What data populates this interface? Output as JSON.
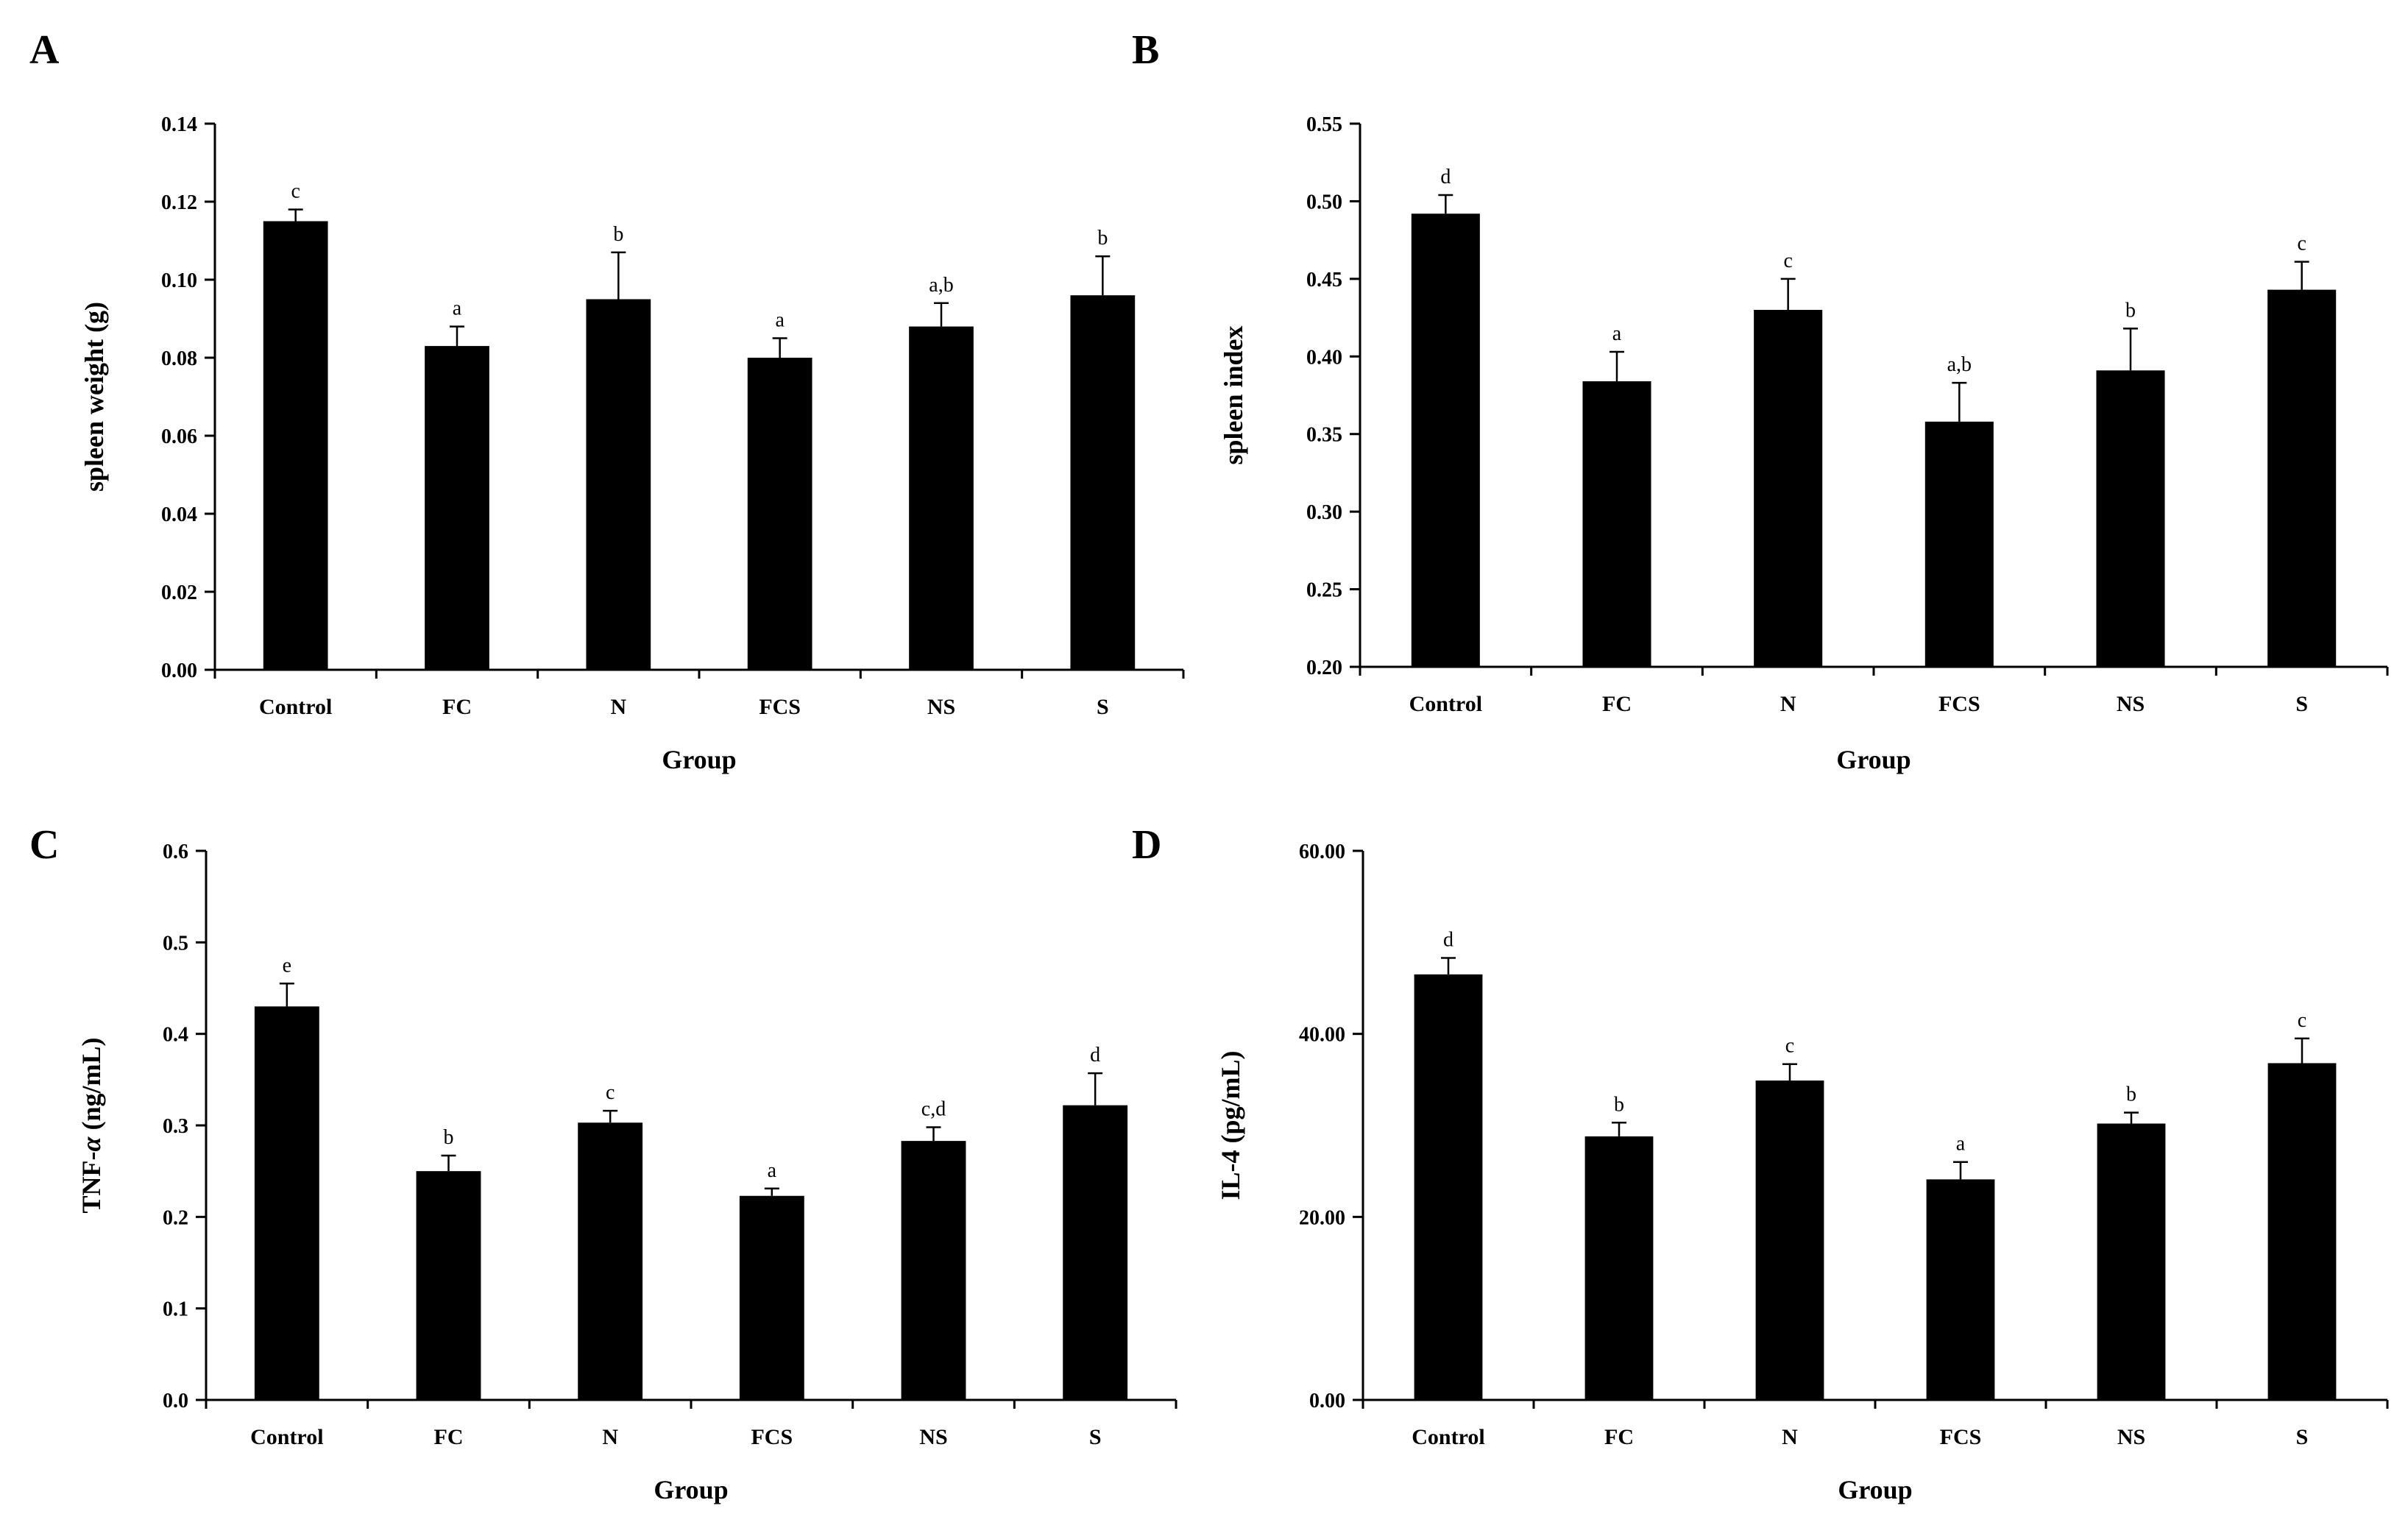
{
  "chart_data": [
    {
      "panel": "A",
      "type": "bar",
      "xlabel": "Group",
      "ylabel": "spleen weight (g)",
      "categories": [
        "Control",
        "FC",
        "N",
        "FCS",
        "NS",
        "S"
      ],
      "values": [
        0.115,
        0.083,
        0.095,
        0.08,
        0.088,
        0.096
      ],
      "errors": [
        0.003,
        0.005,
        0.012,
        0.005,
        0.006,
        0.01
      ],
      "labels": [
        "c",
        "a",
        "b",
        "a",
        "a,b",
        "b"
      ],
      "ylim": [
        0,
        0.14
      ],
      "yticks": [
        0.0,
        0.02,
        0.04,
        0.06,
        0.08,
        0.1,
        0.12,
        0.14
      ],
      "ytick_labels": [
        "0.00",
        "0.02",
        "0.04",
        "0.06",
        "0.08",
        "0.10",
        "0.12",
        "0.14"
      ]
    },
    {
      "panel": "B",
      "type": "bar",
      "xlabel": "Group",
      "ylabel": "spleen index",
      "categories": [
        "Control",
        "FC",
        "N",
        "FCS",
        "NS",
        "S"
      ],
      "values": [
        0.492,
        0.384,
        0.43,
        0.358,
        0.391,
        0.443
      ],
      "errors": [
        0.012,
        0.019,
        0.02,
        0.025,
        0.027,
        0.018
      ],
      "labels": [
        "d",
        "a",
        "c",
        "a,b",
        "b",
        "c"
      ],
      "ylim": [
        0.2,
        0.55
      ],
      "yticks": [
        0.2,
        0.25,
        0.3,
        0.35,
        0.4,
        0.45,
        0.5,
        0.55
      ],
      "ytick_labels": [
        "0.20",
        "0.25",
        "0.30",
        "0.35",
        "0.40",
        "0.45",
        "0.50",
        "0.55"
      ]
    },
    {
      "panel": "C",
      "type": "bar",
      "xlabel": "Group",
      "ylabel_main": "TNF-",
      "ylabel_italic": "α",
      "ylabel_unit": " (ng/mL)",
      "categories": [
        "Control",
        "FC",
        "N",
        "FCS",
        "NS",
        "S"
      ],
      "values": [
        0.43,
        0.25,
        0.303,
        0.223,
        0.283,
        0.322
      ],
      "errors": [
        0.025,
        0.017,
        0.013,
        0.008,
        0.015,
        0.035
      ],
      "labels": [
        "e",
        "b",
        "c",
        "a",
        "c,d",
        "d"
      ],
      "ylim": [
        0,
        0.6
      ],
      "yticks": [
        0.0,
        0.1,
        0.2,
        0.3,
        0.4,
        0.5,
        0.6
      ],
      "ytick_labels": [
        "0.0",
        "0.1",
        "0.2",
        "0.3",
        "0.4",
        "0.5",
        "0.6"
      ]
    },
    {
      "panel": "D",
      "type": "bar",
      "xlabel": "Group",
      "ylabel": "IL-4 (pg/mL)",
      "categories": [
        "Control",
        "FC",
        "N",
        "FCS",
        "NS",
        "S"
      ],
      "values": [
        46.5,
        28.8,
        34.9,
        24.1,
        30.2,
        36.8
      ],
      "errors": [
        1.8,
        1.5,
        1.8,
        1.9,
        1.2,
        2.7
      ],
      "labels": [
        "d",
        "b",
        "c",
        "a",
        "b",
        "c"
      ],
      "ylim": [
        0,
        60
      ],
      "yticks": [
        0,
        20,
        40,
        60
      ],
      "ytick_labels": [
        "0.00",
        "20.00",
        "40.00",
        "60.00"
      ]
    }
  ]
}
